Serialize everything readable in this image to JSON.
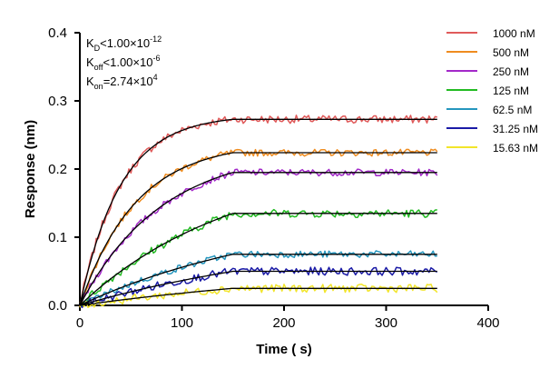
{
  "chart_data": {
    "type": "line",
    "title": "",
    "xlabel": "Time ( s)",
    "ylabel": "Response (nm)",
    "xlim": [
      0,
      400
    ],
    "ylim": [
      0,
      0.4
    ],
    "x_ticks": [
      0,
      100,
      200,
      300,
      400
    ],
    "y_ticks": [
      0.0,
      0.1,
      0.2,
      0.3,
      0.4
    ],
    "x_tick_labels": [
      "0",
      "100",
      "200",
      "300",
      "400"
    ],
    "y_tick_labels": [
      "0.0",
      "0.1",
      "0.2",
      "0.3",
      "0.4"
    ],
    "grid": false,
    "legend_position": "right",
    "association_end": 150,
    "end_time": 350,
    "fit_color": "#000000",
    "annotations": {
      "kd": {
        "base": "K",
        "sub": "D",
        "text": "<1.00×10",
        "sup": "-12"
      },
      "koff": {
        "base": "K",
        "sub": "off",
        "text": "<1.00×10",
        "sup": "-6"
      },
      "kon": {
        "base": "K",
        "sub": "on",
        "text": "=2.74×10",
        "sup": "4"
      }
    },
    "series": [
      {
        "name": "1000 nM",
        "color": "#e05a5a",
        "plateau": 0.273,
        "noise": 0.006,
        "tau": 40
      },
      {
        "name": "500 nM",
        "color": "#ef8c1f",
        "plateau": 0.224,
        "noise": 0.005,
        "tau": 55
      },
      {
        "name": "250 nM",
        "color": "#a329c9",
        "plateau": 0.195,
        "noise": 0.005,
        "tau": 80
      },
      {
        "name": "125 nM",
        "color": "#22bb22",
        "plateau": 0.135,
        "noise": 0.006,
        "tau": 150
      },
      {
        "name": "62.5 nM",
        "color": "#2596be",
        "plateau": 0.075,
        "noise": 0.005,
        "tau": 200
      },
      {
        "name": "31.25 nM",
        "color": "#1a1aa6",
        "plateau": 0.05,
        "noise": 0.006,
        "tau": 260
      },
      {
        "name": "15.63 nM",
        "color": "#f2e52a",
        "plateau": 0.025,
        "noise": 0.006,
        "tau": 320
      }
    ]
  }
}
